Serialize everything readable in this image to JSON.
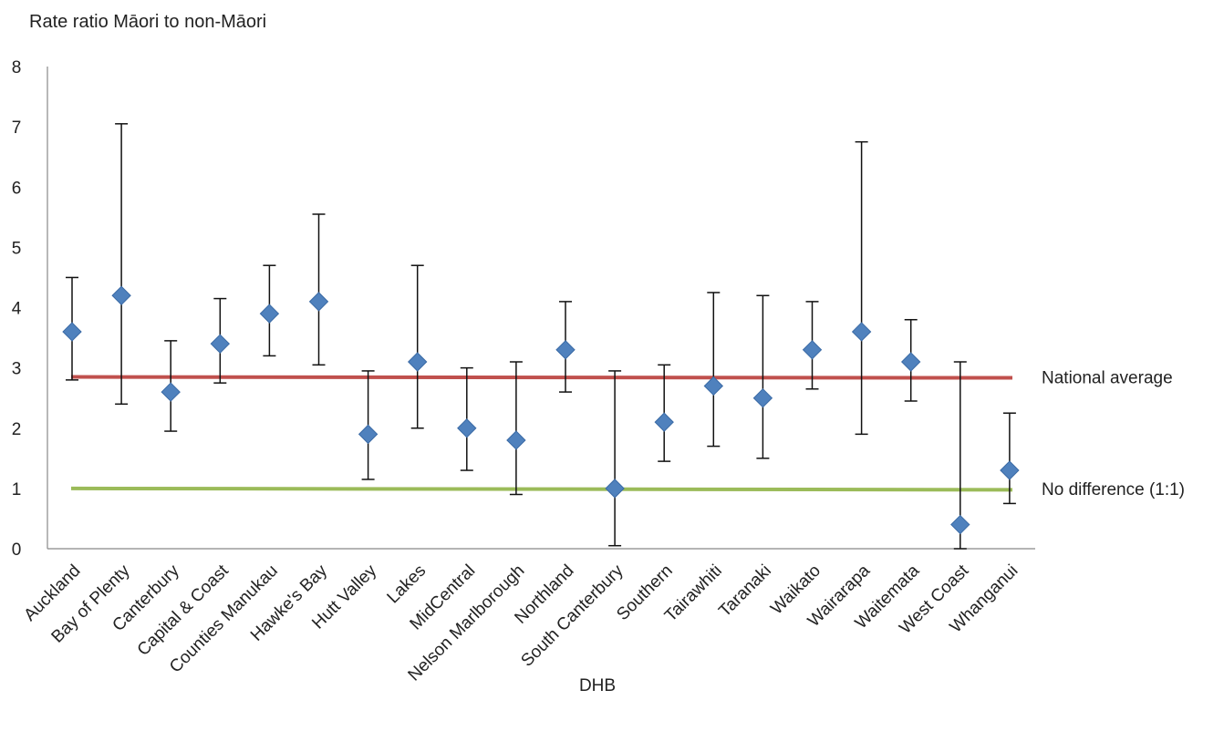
{
  "chart_data": {
    "type": "scatter",
    "ylabel": "Rate ratio Māori to non-Māori",
    "xlabel": "DHB",
    "ylim": [
      0,
      8
    ],
    "yticks": [
      "0",
      "1",
      "2",
      "3",
      "4",
      "5",
      "6",
      "7",
      "8"
    ],
    "categories": [
      "Auckland",
      "Bay of Plenty",
      "Canterbury",
      "Capital & Coast",
      "Counties Manukau",
      "Hawke's Bay",
      "Hutt Valley",
      "Lakes",
      "MidCentral",
      "Nelson Marlborough",
      "Northland",
      "South Canterbury",
      "Southern",
      "Tairawhiti",
      "Taranaki",
      "Waikato",
      "Wairarapa",
      "Waitemata",
      "West Coast",
      "Whanganui"
    ],
    "values": [
      3.6,
      4.2,
      2.6,
      3.4,
      3.9,
      4.1,
      1.9,
      3.1,
      2.0,
      1.8,
      3.3,
      1.0,
      2.1,
      2.7,
      2.5,
      3.3,
      3.6,
      3.1,
      0.4,
      1.3
    ],
    "ci_lower": [
      2.8,
      2.4,
      1.95,
      2.75,
      3.2,
      3.05,
      1.15,
      2.0,
      1.3,
      0.9,
      2.6,
      0.05,
      1.45,
      1.7,
      1.5,
      2.65,
      1.9,
      2.45,
      0.0,
      0.75
    ],
    "ci_upper": [
      4.5,
      7.05,
      3.45,
      4.15,
      4.7,
      5.55,
      2.95,
      4.7,
      3.0,
      3.1,
      4.1,
      2.95,
      3.05,
      4.25,
      4.2,
      4.1,
      6.75,
      3.8,
      3.1,
      2.25
    ],
    "reference_lines": [
      {
        "label": "National average",
        "value": 2.85,
        "color": "#c0504d"
      },
      {
        "label": "No difference (1:1)",
        "value": 1.0,
        "color": "#9bbb59"
      }
    ],
    "marker_color": "#4f81bd",
    "grid": false
  }
}
